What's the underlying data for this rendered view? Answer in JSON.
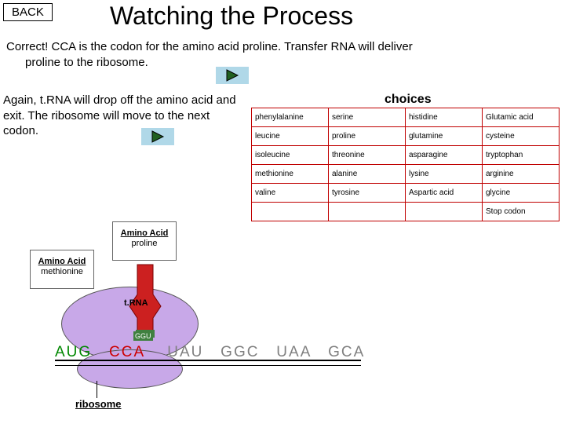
{
  "back_label": "BACK",
  "title": "Watching the Process",
  "para1_line1": "Correct! CCA is the codon for the amino acid proline. Transfer RNA will deliver",
  "para1_line2": "proline to the ribosome.",
  "para2": "Again, t.RNA will drop off the amino acid and exit. The ribosome will move to the next codon.",
  "choices_header": "choices",
  "choices": {
    "rows": [
      [
        "phenylalanine",
        "serine",
        "histidine",
        "Glutamic acid"
      ],
      [
        "leucine",
        "proline",
        "glutamine",
        "cysteine"
      ],
      [
        "isoleucine",
        "threonine",
        "asparagine",
        "tryptophan"
      ],
      [
        "methionine",
        "alanine",
        "lysine",
        "arginine"
      ],
      [
        "valine",
        "tyrosine",
        "Aspartic acid",
        "glycine"
      ]
    ],
    "stop_label": "Stop codon",
    "border_color": "#c00000",
    "cell_fontsize": 10
  },
  "diagram": {
    "amino_acid_heading": "Amino Acid",
    "aa1_name": "methionine",
    "aa2_name": "proline",
    "trna_label": "t.RNA",
    "ribosome_label": "ribosome",
    "anticodon": "GGU",
    "codon1": "AUG",
    "codon2": "CCA",
    "codons_rest": "UAU   GGC   UAA   GCA",
    "colors": {
      "ribosome_fill": "#c8a8e8",
      "trna_fill": "#cc2020",
      "codon_active": "#cc0000",
      "codon_done": "#008800",
      "codon_pending": "#808080",
      "play_bg": "#b0d8e8"
    }
  }
}
